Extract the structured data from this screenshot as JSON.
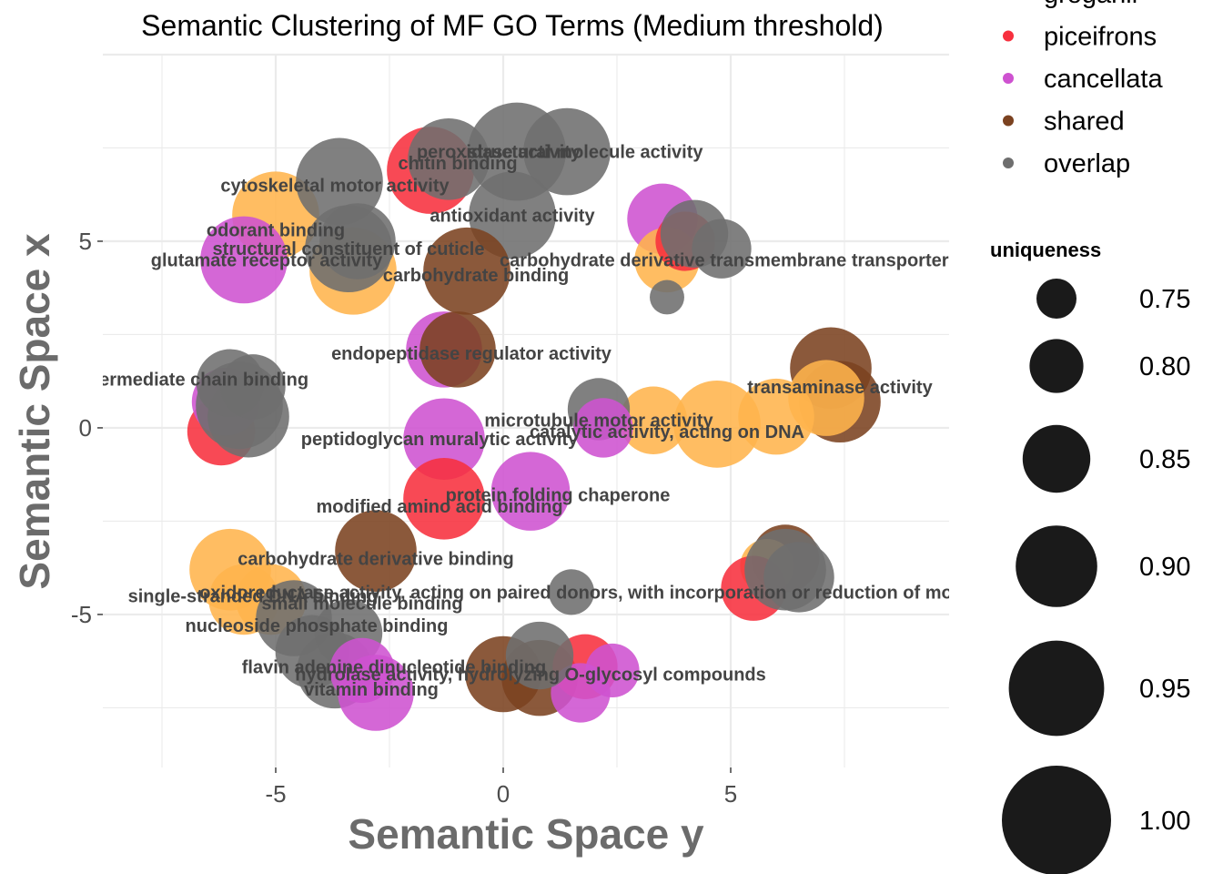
{
  "chart_data": {
    "type": "scatter",
    "title": "Semantic Clustering of MF GO Terms (Medium threshold)",
    "xlabel": "Semantic Space y",
    "ylabel": "Semantic Space x",
    "xlim": [
      -8.8,
      9.8
    ],
    "ylim": [
      -9.1,
      10.0
    ],
    "x_ticks": [
      -5,
      0,
      5
    ],
    "x_tick_labels": [
      "-5",
      "0",
      "5"
    ],
    "y_ticks": [
      -5,
      0,
      5
    ],
    "y_tick_labels": [
      "-5",
      "0",
      "5"
    ],
    "colors": {
      "groganii": "#FFB44C",
      "piceifrons": "#F7303E",
      "cancellata": "#CE52D0",
      "shared": "#7B4220",
      "overlap": "#6E6E6E"
    },
    "legend_color": {
      "title": "",
      "entries": [
        {
          "name": "groganii",
          "label": "groganii"
        },
        {
          "name": "piceifrons",
          "label": "piceifrons"
        },
        {
          "name": "cancellata",
          "label": "cancellata"
        },
        {
          "name": "shared",
          "label": "shared"
        },
        {
          "name": "overlap",
          "label": "overlap"
        }
      ]
    },
    "legend_size": {
      "title": "uniqueness",
      "values": [
        0.75,
        0.8,
        0.85,
        0.9,
        0.95,
        1.0
      ],
      "labels": [
        "0.75",
        "0.80",
        "0.85",
        "0.90",
        "0.95",
        "1.00"
      ]
    },
    "points": [
      {
        "x": -5.0,
        "y": 5.7,
        "u": 0.92,
        "g": "groganii"
      },
      {
        "x": -1.6,
        "y": 6.9,
        "u": 0.92,
        "g": "piceifrons"
      },
      {
        "x": -1.2,
        "y": 7.2,
        "u": 0.9,
        "g": "overlap"
      },
      {
        "x": 0.3,
        "y": 7.4,
        "u": 0.96,
        "g": "overlap"
      },
      {
        "x": 1.4,
        "y": 7.4,
        "u": 0.92,
        "g": "overlap"
      },
      {
        "x": 0.2,
        "y": 5.7,
        "u": 0.92,
        "g": "overlap"
      },
      {
        "x": -3.6,
        "y": 6.6,
        "u": 0.92,
        "g": "overlap"
      },
      {
        "x": -3.3,
        "y": 4.2,
        "u": 0.92,
        "g": "groganii"
      },
      {
        "x": -5.7,
        "y": 4.5,
        "u": 0.92,
        "g": "cancellata"
      },
      {
        "x": -3.4,
        "y": 4.8,
        "u": 0.92,
        "g": "overlap"
      },
      {
        "x": -3.2,
        "y": 5.0,
        "u": 0.88,
        "g": "overlap"
      },
      {
        "x": -0.8,
        "y": 4.2,
        "u": 0.92,
        "g": "shared"
      },
      {
        "x": 3.5,
        "y": 5.6,
        "u": 0.86,
        "g": "cancellata"
      },
      {
        "x": 3.6,
        "y": 4.5,
        "u": 0.84,
        "g": "groganii"
      },
      {
        "x": 4.0,
        "y": 5.0,
        "u": 0.82,
        "g": "piceifrons"
      },
      {
        "x": 4.2,
        "y": 5.2,
        "u": 0.85,
        "g": "overlap"
      },
      {
        "x": 4.8,
        "y": 4.8,
        "u": 0.82,
        "g": "overlap"
      },
      {
        "x": 3.6,
        "y": 3.5,
        "u": 0.73,
        "g": "overlap"
      },
      {
        "x": -1.3,
        "y": 2.1,
        "u": 0.88,
        "g": "cancellata"
      },
      {
        "x": -1.0,
        "y": 2.1,
        "u": 0.88,
        "g": "shared"
      },
      {
        "x": -6.2,
        "y": -0.1,
        "u": 0.85,
        "g": "piceifrons"
      },
      {
        "x": -6.1,
        "y": 0.7,
        "u": 0.85,
        "g": "cancellata"
      },
      {
        "x": -5.8,
        "y": 0.6,
        "u": 0.92,
        "g": "overlap"
      },
      {
        "x": -5.6,
        "y": 0.3,
        "u": 0.9,
        "g": "overlap"
      },
      {
        "x": -6.0,
        "y": 1.2,
        "u": 0.85,
        "g": "overlap"
      },
      {
        "x": -5.5,
        "y": 1.1,
        "u": 0.84,
        "g": "overlap"
      },
      {
        "x": 7.2,
        "y": 1.6,
        "u": 0.9,
        "g": "shared"
      },
      {
        "x": 7.4,
        "y": 0.7,
        "u": 0.9,
        "g": "shared"
      },
      {
        "x": 7.1,
        "y": 0.8,
        "u": 0.88,
        "g": "groganii"
      },
      {
        "x": 6.0,
        "y": 0.3,
        "u": 0.88,
        "g": "groganii"
      },
      {
        "x": 4.7,
        "y": 0.1,
        "u": 0.92,
        "g": "groganii"
      },
      {
        "x": 3.3,
        "y": 0.2,
        "u": 0.85,
        "g": "groganii"
      },
      {
        "x": 2.1,
        "y": 0.5,
        "u": 0.83,
        "g": "overlap"
      },
      {
        "x": 2.2,
        "y": 0.0,
        "u": 0.82,
        "g": "cancellata"
      },
      {
        "x": -1.3,
        "y": -0.3,
        "u": 0.9,
        "g": "cancellata"
      },
      {
        "x": -1.3,
        "y": -1.9,
        "u": 0.9,
        "g": "piceifrons"
      },
      {
        "x": 0.6,
        "y": -1.7,
        "u": 0.89,
        "g": "cancellata"
      },
      {
        "x": -6.0,
        "y": -3.8,
        "u": 0.9,
        "g": "groganii"
      },
      {
        "x": -5.7,
        "y": -4.6,
        "u": 0.86,
        "g": "groganii"
      },
      {
        "x": -5.1,
        "y": -4.6,
        "u": 0.86,
        "g": "groganii"
      },
      {
        "x": -2.8,
        "y": -3.3,
        "u": 0.9,
        "g": "shared"
      },
      {
        "x": -4.6,
        "y": -5.1,
        "u": 0.88,
        "g": "overlap"
      },
      {
        "x": -4.2,
        "y": -6.0,
        "u": 0.87,
        "g": "overlap"
      },
      {
        "x": -3.7,
        "y": -6.5,
        "u": 0.88,
        "g": "overlap"
      },
      {
        "x": -3.4,
        "y": -5.5,
        "u": 0.85,
        "g": "overlap"
      },
      {
        "x": -3.1,
        "y": -6.5,
        "u": 0.84,
        "g": "cancellata"
      },
      {
        "x": -2.8,
        "y": -7.1,
        "u": 0.88,
        "g": "cancellata"
      },
      {
        "x": 1.5,
        "y": -4.4,
        "u": 0.77,
        "g": "overlap"
      },
      {
        "x": 0.0,
        "y": -6.6,
        "u": 0.88,
        "g": "shared"
      },
      {
        "x": 0.8,
        "y": -6.7,
        "u": 0.88,
        "g": "shared"
      },
      {
        "x": 1.8,
        "y": -6.4,
        "u": 0.84,
        "g": "piceifrons"
      },
      {
        "x": 2.4,
        "y": -6.5,
        "u": 0.8,
        "g": "cancellata"
      },
      {
        "x": 1.7,
        "y": -7.1,
        "u": 0.82,
        "g": "cancellata"
      },
      {
        "x": 0.8,
        "y": -6.1,
        "u": 0.85,
        "g": "overlap"
      },
      {
        "x": 6.2,
        "y": -3.5,
        "u": 0.85,
        "g": "shared"
      },
      {
        "x": 5.8,
        "y": -3.7,
        "u": 0.8,
        "g": "groganii"
      },
      {
        "x": 5.5,
        "y": -4.3,
        "u": 0.84,
        "g": "piceifrons"
      },
      {
        "x": 6.2,
        "y": -3.8,
        "u": 0.9,
        "g": "overlap"
      },
      {
        "x": 6.5,
        "y": -4.0,
        "u": 0.86,
        "g": "overlap"
      }
    ],
    "labels": [
      {
        "x": 1.8,
        "y": 7.4,
        "text": "structural molecule activity"
      },
      {
        "x": -0.1,
        "y": 7.4,
        "text": "peroxidase activity"
      },
      {
        "x": -1.0,
        "y": 7.1,
        "text": "chitin binding"
      },
      {
        "x": -3.7,
        "y": 6.5,
        "text": "cytoskeletal motor activity"
      },
      {
        "x": 0.2,
        "y": 5.7,
        "text": "antioxidant activity"
      },
      {
        "x": -5.0,
        "y": 5.3,
        "text": "odorant binding"
      },
      {
        "x": -3.4,
        "y": 4.8,
        "text": "structural constituent of cuticle"
      },
      {
        "x": -5.2,
        "y": 4.5,
        "text": "glutamate receptor activity"
      },
      {
        "x": 5.6,
        "y": 4.5,
        "text": "carbohydrate derivative transmembrane transporter activity"
      },
      {
        "x": -0.6,
        "y": 4.1,
        "text": "carbohydrate binding"
      },
      {
        "x": -0.7,
        "y": 2.0,
        "text": "endopeptidase regulator activity"
      },
      {
        "x": -7.3,
        "y": 1.3,
        "text": "light intermediate chain binding"
      },
      {
        "x": 7.4,
        "y": 1.1,
        "text": "transaminase activity"
      },
      {
        "x": 2.1,
        "y": 0.2,
        "text": "microtubule motor activity"
      },
      {
        "x": 3.6,
        "y": -0.1,
        "text": "catalytic activity, acting on DNA"
      },
      {
        "x": -1.4,
        "y": -0.3,
        "text": "peptidoglycan muralytic activity"
      },
      {
        "x": 1.2,
        "y": -1.8,
        "text": "protein folding chaperone"
      },
      {
        "x": -1.4,
        "y": -2.1,
        "text": "modified amino acid binding"
      },
      {
        "x": -2.8,
        "y": -3.5,
        "text": "carbohydrate derivative binding"
      },
      {
        "x": -5.5,
        "y": -4.5,
        "text": "single-stranded DNA binding"
      },
      {
        "x": 3.0,
        "y": -4.4,
        "text": "oxidoreductase activity, acting on paired donors, with incorporation or reduction of molecular oxygen"
      },
      {
        "x": -3.1,
        "y": -4.7,
        "text": "small molecule binding"
      },
      {
        "x": -4.1,
        "y": -5.3,
        "text": "nucleoside phosphate binding"
      },
      {
        "x": -2.4,
        "y": -6.4,
        "text": "flavin adenine dinucleotide binding"
      },
      {
        "x": 0.6,
        "y": -6.6,
        "text": "hydrolase activity, hydrolyzing O-glycosyl compounds"
      },
      {
        "x": -2.9,
        "y": -7.0,
        "text": "vitamin binding"
      }
    ]
  }
}
